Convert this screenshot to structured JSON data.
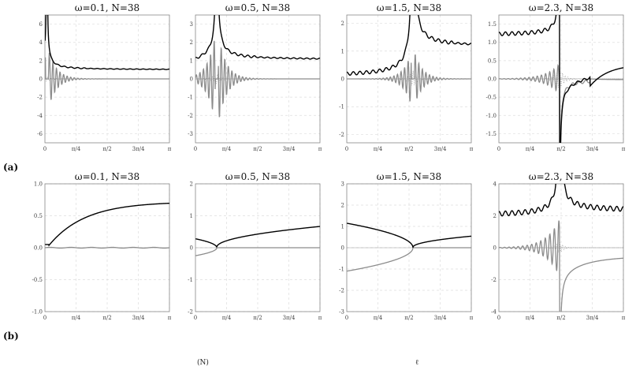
{
  "figure": {
    "row_labels": [
      "(a)",
      "(b)"
    ],
    "caption_fragments": [
      "(N)",
      "ℓ"
    ]
  },
  "chart_data": [
    {
      "type": "line",
      "row": "a",
      "col": 0,
      "title": "ω=0.1, N=38",
      "xlabel": "",
      "ylabel": "",
      "xlim": [
        0,
        3.14159
      ],
      "ylim": [
        -7,
        7
      ],
      "yticks": [
        -6,
        -4,
        -2,
        0,
        2,
        4,
        6
      ],
      "xticks": [
        {
          "value": 0.7854,
          "label": "π/4"
        },
        {
          "value": 1.5708,
          "label": "π/2"
        },
        {
          "value": 2.3562,
          "label": "3π/4"
        },
        {
          "value": 3.14159,
          "label": "π"
        }
      ],
      "grid": true,
      "features": {
        "singular": 0.05,
        "gray_osc_amp": 4,
        "black_far": 1.0
      },
      "series": []
    },
    {
      "type": "line",
      "row": "a",
      "col": 1,
      "title": "ω=0.5, N=38",
      "xlabel": "",
      "ylabel": "",
      "xlim": [
        0,
        3.14159
      ],
      "ylim": [
        -3.5,
        3.5
      ],
      "yticks": [
        -3,
        -2,
        -1,
        0,
        1,
        2,
        3
      ],
      "xticks": [
        {
          "value": 0.7854,
          "label": "π/4"
        },
        {
          "value": 1.5708,
          "label": "π/2"
        },
        {
          "value": 2.3562,
          "label": "3π/4"
        },
        {
          "value": 3.14159,
          "label": "π"
        }
      ],
      "grid": true,
      "features": {
        "singular": 0.54,
        "gray_osc_amp": 3,
        "black_far": 1.05
      },
      "series": []
    },
    {
      "type": "line",
      "row": "a",
      "col": 2,
      "title": "ω=1.5, N=38",
      "xlabel": "",
      "ylabel": "",
      "xlim": [
        0,
        3.14159
      ],
      "ylim": [
        -2.3,
        2.3
      ],
      "yticks": [
        -2,
        -1,
        0,
        1,
        2
      ],
      "xticks": [
        {
          "value": 0.7854,
          "label": "π/4"
        },
        {
          "value": 1.5708,
          "label": "π/2"
        },
        {
          "value": 2.3562,
          "label": "3π/4"
        },
        {
          "value": 3.14159,
          "label": "π"
        }
      ],
      "grid": true,
      "features": {
        "singular": 1.67,
        "gray_osc_amp": 1.2,
        "black_far": 1.15
      },
      "series": []
    },
    {
      "type": "line",
      "row": "a",
      "col": 3,
      "title": "ω=2.3, N=38",
      "xlabel": "",
      "ylabel": "",
      "xlim": [
        0,
        3.14159
      ],
      "ylim": [
        -1.75,
        1.75
      ],
      "yticks": [
        -1.5,
        -1.0,
        -0.5,
        0,
        0.5,
        1.0,
        1.5
      ],
      "xticks": [
        {
          "value": 0.7854,
          "label": "π/4"
        },
        {
          "value": 1.5708,
          "label": "π/2"
        },
        {
          "value": 2.3562,
          "label": "3π/4"
        },
        {
          "value": 3.14159,
          "label": "π"
        }
      ],
      "grid": true,
      "features": {
        "singular": 1.53,
        "gray_osc_amp": 0.7,
        "black_far": 0.4
      },
      "series": []
    },
    {
      "type": "line",
      "row": "b",
      "col": 0,
      "title": "ω=0.1, N=38",
      "xlabel": "",
      "ylabel": "",
      "xlim": [
        0,
        3.14159
      ],
      "ylim": [
        -1.0,
        1.0
      ],
      "yticks": [
        -1.0,
        -0.5,
        0.0,
        0.5,
        1.0
      ],
      "xticks": [
        {
          "value": 0.7854,
          "label": "π/4"
        },
        {
          "value": 1.5708,
          "label": "π/2"
        },
        {
          "value": 2.3562,
          "label": "3π/4"
        },
        {
          "value": 3.14159,
          "label": "π"
        }
      ],
      "grid": true,
      "features": {
        "upper_end": 0.7,
        "lower_end": 0.0,
        "start_upper": 0.05
      },
      "series": []
    },
    {
      "type": "line",
      "row": "b",
      "col": 1,
      "title": "ω=0.5, N=38",
      "xlabel": "",
      "ylabel": "",
      "xlim": [
        0,
        3.14159
      ],
      "ylim": [
        -2,
        2
      ],
      "yticks": [
        -2,
        -1,
        0,
        1,
        2
      ],
      "xticks": [
        {
          "value": 0.7854,
          "label": "π/4"
        },
        {
          "value": 1.5708,
          "label": "π/2"
        },
        {
          "value": 2.3562,
          "label": "3π/4"
        },
        {
          "value": 3.14159,
          "label": "π"
        }
      ],
      "grid": true,
      "features": {
        "cusp": 0.54,
        "start_upper": 0.28,
        "start_lower": -0.25,
        "upper_end": 0.68
      },
      "series": []
    },
    {
      "type": "line",
      "row": "b",
      "col": 2,
      "title": "ω=1.5, N=38",
      "xlabel": "",
      "ylabel": "",
      "xlim": [
        0,
        3.14159
      ],
      "ylim": [
        -3,
        3
      ],
      "yticks": [
        -3,
        -2,
        -1,
        0,
        1,
        2,
        3
      ],
      "xticks": [
        {
          "value": 0.7854,
          "label": "π/4"
        },
        {
          "value": 1.5708,
          "label": "π/2"
        },
        {
          "value": 2.3562,
          "label": "3π/4"
        },
        {
          "value": 3.14159,
          "label": "π"
        }
      ],
      "grid": true,
      "features": {
        "cusp": 1.67,
        "start_upper": 1.15,
        "start_lower": -1.1,
        "upper_end": 0.55
      },
      "series": []
    },
    {
      "type": "line",
      "row": "b",
      "col": 3,
      "title": "ω=2.3, N=38",
      "xlabel": "",
      "ylabel": "",
      "xlim": [
        0,
        3.14159
      ],
      "ylim": [
        -4,
        4
      ],
      "yticks": [
        -4,
        -2,
        0,
        2,
        4
      ],
      "xticks": [
        {
          "value": 0.7854,
          "label": "π/4"
        },
        {
          "value": 1.5708,
          "label": "π/2"
        },
        {
          "value": 2.3562,
          "label": "3π/4"
        },
        {
          "value": 3.14159,
          "label": "π"
        }
      ],
      "grid": true,
      "features": {
        "singular": 1.53,
        "gray_osc_amp": 1.8,
        "black_far": 0.5,
        "gray_far": -0.5
      },
      "series": []
    }
  ]
}
